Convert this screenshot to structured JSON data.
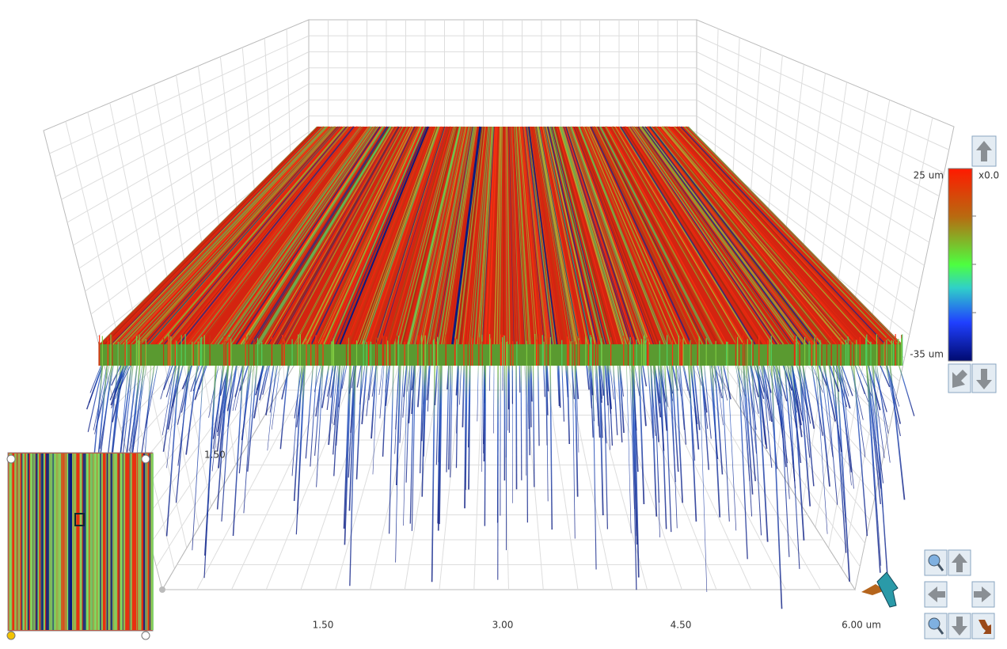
{
  "axis": {
    "x_labels": [
      "1.50",
      "3.00",
      "4.50",
      "6.00 um"
    ],
    "depth_label": "1.50"
  },
  "colorbar": {
    "max_label": "25 um",
    "min_label": "-35 um",
    "scale_label": "x0.0"
  }
}
